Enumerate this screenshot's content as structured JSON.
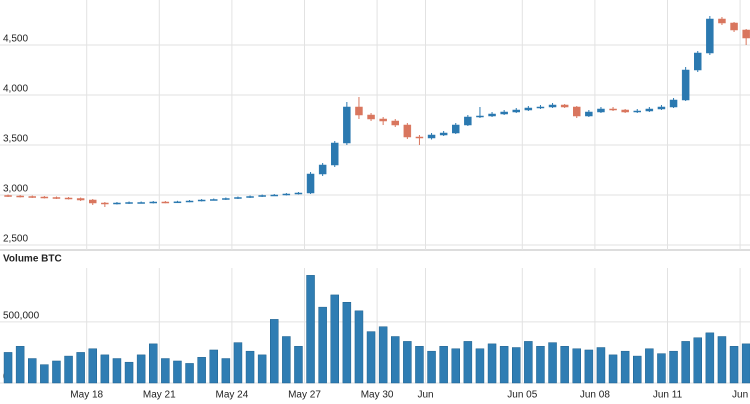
{
  "chart_data": {
    "type": "candlestick",
    "categories": [
      null,
      null,
      null,
      null,
      null,
      null,
      null,
      "May 18",
      null,
      null,
      null,
      null,
      null,
      "May 21",
      null,
      null,
      null,
      null,
      null,
      "May 24",
      null,
      null,
      null,
      null,
      null,
      "May 27",
      null,
      null,
      null,
      null,
      null,
      "May 30",
      null,
      null,
      null,
      "Jun",
      null,
      null,
      null,
      null,
      null,
      null,
      null,
      "Jun 05",
      null,
      null,
      null,
      null,
      null,
      "Jun 08",
      null,
      null,
      null,
      null,
      null,
      "Jun 11",
      null,
      null,
      null,
      null,
      null,
      "Jun"
    ],
    "open": [
      2995,
      2990,
      2985,
      2980,
      2975,
      2970,
      2965,
      2950,
      2920,
      2915,
      2920,
      2925,
      2925,
      2930,
      2928,
      2932,
      2940,
      2950,
      2955,
      2965,
      2975,
      2985,
      2995,
      3000,
      3010,
      3020,
      3210,
      3300,
      3520,
      3880,
      3800,
      3760,
      3740,
      3700,
      3580,
      3570,
      3600,
      3620,
      3700,
      3780,
      3790,
      3810,
      3830,
      3850,
      3870,
      3880,
      3900,
      3880,
      3790,
      3830,
      3860,
      3850,
      3830,
      3840,
      3860,
      3880,
      3950,
      4250,
      4420,
      4760,
      4720,
      4650
    ],
    "high": [
      3005,
      3000,
      2995,
      2990,
      2985,
      2980,
      2975,
      2960,
      2930,
      2930,
      2935,
      2935,
      2940,
      2940,
      2942,
      2950,
      2960,
      2965,
      2975,
      2985,
      2995,
      3005,
      3010,
      3020,
      3030,
      3230,
      3320,
      3540,
      3930,
      3980,
      3820,
      3780,
      3760,
      3720,
      3600,
      3620,
      3640,
      3720,
      3800,
      3880,
      3830,
      3850,
      3870,
      3890,
      3900,
      3920,
      3910,
      3890,
      3850,
      3880,
      3880,
      3860,
      3860,
      3880,
      3900,
      3970,
      4280,
      4440,
      4790,
      4780,
      4730,
      4660
    ],
    "low": [
      2980,
      2975,
      2970,
      2965,
      2960,
      2955,
      2940,
      2900,
      2880,
      2905,
      2910,
      2915,
      2915,
      2918,
      2920,
      2928,
      2935,
      2945,
      2950,
      2960,
      2970,
      2980,
      2990,
      2995,
      3005,
      3010,
      3190,
      3280,
      3500,
      3760,
      3740,
      3700,
      3680,
      3560,
      3500,
      3555,
      3590,
      3610,
      3690,
      3770,
      3780,
      3800,
      3820,
      3840,
      3860,
      3870,
      3870,
      3770,
      3780,
      3820,
      3840,
      3820,
      3820,
      3830,
      3850,
      3870,
      3940,
      4230,
      4400,
      4700,
      4630,
      4500
    ],
    "close": [
      2990,
      2985,
      2980,
      2975,
      2970,
      2965,
      2950,
      2920,
      2915,
      2920,
      2925,
      2925,
      2930,
      2928,
      2932,
      2940,
      2950,
      2955,
      2965,
      2975,
      2985,
      2995,
      3000,
      3010,
      3020,
      3210,
      3300,
      3520,
      3880,
      3800,
      3760,
      3740,
      3700,
      3580,
      3570,
      3600,
      3620,
      3700,
      3780,
      3790,
      3810,
      3830,
      3850,
      3870,
      3880,
      3900,
      3880,
      3790,
      3830,
      3860,
      3850,
      3830,
      3840,
      3860,
      3880,
      3950,
      4250,
      4420,
      4760,
      4720,
      4650,
      4570
    ],
    "up_color": "#2b79b0",
    "down_color": "#d9765e",
    "ylim": [
      2450,
      4950
    ],
    "yticks": [
      {
        "value": 2500,
        "label": "2,500"
      },
      {
        "value": 3000,
        "label": "3,000"
      },
      {
        "value": 3500,
        "label": "3,500"
      },
      {
        "value": 4000,
        "label": "4,000"
      },
      {
        "value": 4500,
        "label": "4,500"
      }
    ],
    "grid": true,
    "volume": {
      "title": "Volume BTC",
      "color": "#2f7db3",
      "values": [
        250000,
        300000,
        200000,
        150000,
        180000,
        220000,
        250000,
        280000,
        230000,
        200000,
        170000,
        230000,
        320000,
        200000,
        180000,
        160000,
        210000,
        270000,
        200000,
        330000,
        260000,
        230000,
        520000,
        380000,
        300000,
        880000,
        620000,
        720000,
        660000,
        590000,
        420000,
        460000,
        380000,
        340000,
        300000,
        260000,
        300000,
        280000,
        340000,
        280000,
        320000,
        300000,
        290000,
        340000,
        300000,
        330000,
        300000,
        280000,
        270000,
        290000,
        230000,
        260000,
        220000,
        280000,
        240000,
        260000,
        340000,
        370000,
        410000,
        380000,
        300000,
        320000
      ],
      "ylim": [
        0,
        940000
      ],
      "yticks": [
        0,
        {
          "value": 500000,
          "label": "500,000"
        }
      ]
    }
  }
}
